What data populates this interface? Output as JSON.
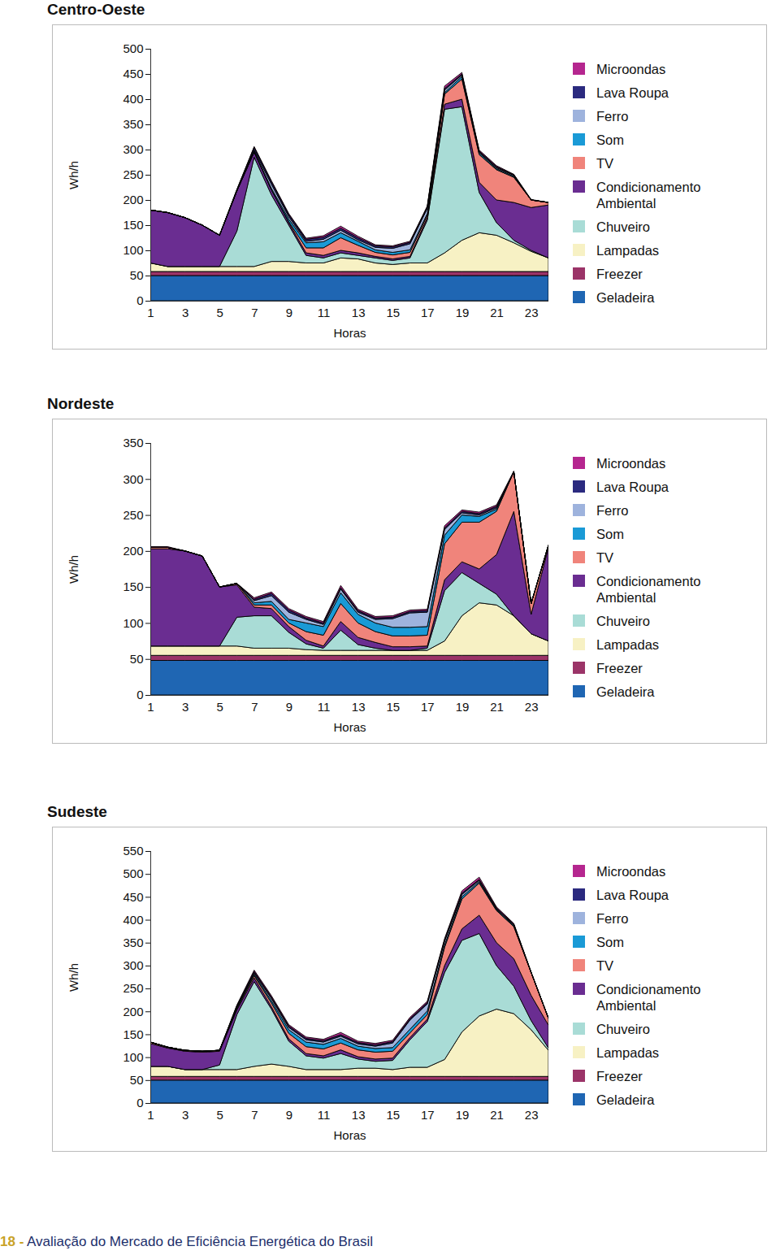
{
  "chart_data": [
    {
      "type": "area",
      "stacked": true,
      "title": "Centro-Oeste",
      "xlabel": "Horas",
      "ylabel": "Wh/h",
      "x": [
        1,
        2,
        3,
        4,
        5,
        6,
        7,
        8,
        9,
        10,
        11,
        12,
        13,
        14,
        15,
        16,
        17,
        18,
        19,
        20,
        21,
        22,
        23,
        24
      ],
      "xlim": [
        1,
        24
      ],
      "xticks": [
        1,
        3,
        5,
        7,
        9,
        11,
        13,
        15,
        17,
        19,
        21,
        23
      ],
      "ylim": [
        0,
        500
      ],
      "yticks": [
        0,
        50,
        100,
        150,
        200,
        250,
        300,
        350,
        400,
        450,
        500
      ],
      "series": [
        {
          "name": "Geladeira",
          "color": "#1f66b3",
          "values": [
            50,
            50,
            50,
            50,
            50,
            50,
            50,
            50,
            50,
            50,
            50,
            50,
            50,
            50,
            50,
            50,
            50,
            50,
            50,
            50,
            50,
            50,
            50,
            50
          ]
        },
        {
          "name": "Freezer",
          "color": "#9b3468",
          "values": [
            8,
            8,
            8,
            8,
            8,
            8,
            8,
            8,
            8,
            8,
            8,
            8,
            8,
            8,
            8,
            8,
            8,
            8,
            8,
            8,
            8,
            8,
            8,
            8
          ]
        },
        {
          "name": "Lampadas",
          "color": "#f7f1c4",
          "values": [
            17,
            10,
            10,
            10,
            10,
            10,
            10,
            20,
            20,
            17,
            17,
            27,
            25,
            17,
            14,
            17,
            17,
            37,
            62,
            77,
            72,
            57,
            40,
            27
          ]
        },
        {
          "name": "Chuveiro",
          "color": "#a9dcd6",
          "values": [
            0,
            0,
            0,
            0,
            0,
            70,
            217,
            132,
            72,
            15,
            10,
            10,
            7,
            10,
            8,
            10,
            85,
            285,
            265,
            80,
            25,
            5,
            2,
            0
          ]
        },
        {
          "name": "Condicionamento Ambiental",
          "color": "#6a2d91",
          "values": [
            105,
            107,
            97,
            82,
            62,
            80,
            10,
            10,
            5,
            5,
            5,
            5,
            5,
            3,
            3,
            3,
            5,
            10,
            15,
            20,
            45,
            75,
            85,
            105
          ]
        },
        {
          "name": "TV",
          "color": "#f0847b",
          "values": [
            0,
            0,
            0,
            0,
            0,
            0,
            0,
            0,
            2,
            10,
            15,
            25,
            15,
            8,
            8,
            8,
            5,
            20,
            40,
            55,
            60,
            50,
            15,
            5
          ]
        },
        {
          "name": "Som",
          "color": "#1a9ad6",
          "values": [
            0,
            0,
            0,
            0,
            0,
            0,
            2,
            3,
            5,
            10,
            12,
            10,
            8,
            5,
            5,
            5,
            3,
            3,
            5,
            3,
            2,
            2,
            0,
            0
          ]
        },
        {
          "name": "Ferro",
          "color": "#9eb3dd",
          "values": [
            0,
            0,
            0,
            0,
            0,
            0,
            2,
            8,
            5,
            3,
            5,
            5,
            3,
            5,
            8,
            12,
            10,
            5,
            3,
            2,
            2,
            2,
            0,
            0
          ]
        },
        {
          "name": "Lava Roupa",
          "color": "#2b2a7f",
          "values": [
            0,
            0,
            0,
            0,
            0,
            2,
            5,
            5,
            4,
            4,
            4,
            4,
            4,
            3,
            3,
            3,
            3,
            3,
            2,
            2,
            2,
            1,
            0,
            0
          ]
        },
        {
          "name": "Microondas",
          "color": "#b5268f",
          "values": [
            0,
            0,
            0,
            0,
            0,
            1,
            2,
            2,
            2,
            2,
            3,
            4,
            3,
            2,
            2,
            2,
            2,
            5,
            3,
            2,
            2,
            1,
            1,
            0
          ]
        }
      ]
    },
    {
      "type": "area",
      "stacked": true,
      "title": "Nordeste",
      "xlabel": "Horas",
      "ylabel": "Wh/h",
      "x": [
        1,
        2,
        3,
        4,
        5,
        6,
        7,
        8,
        9,
        10,
        11,
        12,
        13,
        14,
        15,
        16,
        17,
        18,
        19,
        20,
        21,
        22,
        23,
        24
      ],
      "xlim": [
        1,
        24
      ],
      "xticks": [
        1,
        3,
        5,
        7,
        9,
        11,
        13,
        15,
        17,
        19,
        21,
        23
      ],
      "ylim": [
        0,
        350
      ],
      "yticks": [
        0,
        50,
        100,
        150,
        200,
        250,
        300,
        350
      ],
      "series": [
        {
          "name": "Geladeira",
          "color": "#1f66b3",
          "values": [
            48,
            48,
            48,
            48,
            48,
            48,
            48,
            48,
            48,
            48,
            48,
            48,
            48,
            48,
            48,
            48,
            48,
            48,
            48,
            48,
            48,
            48,
            48,
            48
          ]
        },
        {
          "name": "Freezer",
          "color": "#9b3468",
          "values": [
            7,
            7,
            7,
            7,
            7,
            7,
            7,
            7,
            7,
            7,
            7,
            7,
            7,
            7,
            7,
            7,
            7,
            7,
            7,
            7,
            7,
            7,
            7,
            7
          ]
        },
        {
          "name": "Lampadas",
          "color": "#f7f1c4",
          "values": [
            13,
            13,
            13,
            13,
            13,
            13,
            10,
            10,
            10,
            8,
            7,
            7,
            7,
            7,
            7,
            7,
            7,
            20,
            55,
            73,
            70,
            55,
            30,
            20
          ]
        },
        {
          "name": "Chuveiro",
          "color": "#a9dcd6",
          "values": [
            0,
            0,
            0,
            0,
            0,
            40,
            45,
            45,
            22,
            8,
            3,
            28,
            8,
            3,
            0,
            0,
            3,
            70,
            60,
            27,
            15,
            0,
            0,
            0
          ]
        },
        {
          "name": "Condicionamento Ambiental",
          "color": "#6a2d91",
          "values": [
            135,
            135,
            132,
            125,
            82,
            45,
            12,
            10,
            8,
            5,
            3,
            12,
            10,
            8,
            5,
            5,
            3,
            15,
            15,
            20,
            55,
            145,
            27,
            130
          ]
        },
        {
          "name": "TV",
          "color": "#f0847b",
          "values": [
            2,
            2,
            0,
            0,
            0,
            2,
            3,
            5,
            5,
            12,
            15,
            25,
            20,
            15,
            15,
            15,
            15,
            50,
            55,
            65,
            60,
            55,
            15,
            3
          ]
        },
        {
          "name": "Som",
          "color": "#1a9ad6",
          "values": [
            0,
            0,
            0,
            0,
            0,
            0,
            3,
            5,
            5,
            12,
            12,
            15,
            12,
            12,
            12,
            12,
            12,
            12,
            10,
            8,
            3,
            0,
            0,
            0
          ]
        },
        {
          "name": "Ferro",
          "color": "#9eb3dd",
          "values": [
            0,
            0,
            0,
            0,
            0,
            0,
            3,
            8,
            10,
            5,
            3,
            5,
            3,
            5,
            12,
            20,
            20,
            8,
            3,
            2,
            2,
            0,
            0,
            0
          ]
        },
        {
          "name": "Lava Roupa",
          "color": "#2b2a7f",
          "values": [
            0,
            0,
            0,
            0,
            0,
            0,
            2,
            3,
            3,
            2,
            2,
            2,
            2,
            2,
            2,
            2,
            2,
            2,
            2,
            2,
            2,
            0,
            0,
            0
          ]
        },
        {
          "name": "Microondas",
          "color": "#b5268f",
          "values": [
            1,
            1,
            0,
            0,
            0,
            0,
            2,
            2,
            2,
            2,
            2,
            3,
            2,
            2,
            2,
            2,
            2,
            3,
            2,
            2,
            2,
            1,
            0,
            0
          ]
        }
      ]
    },
    {
      "type": "area",
      "stacked": true,
      "title": "Sudeste",
      "xlabel": "Horas",
      "ylabel": "Wh/h",
      "x": [
        1,
        2,
        3,
        4,
        5,
        6,
        7,
        8,
        9,
        10,
        11,
        12,
        13,
        14,
        15,
        16,
        17,
        18,
        19,
        20,
        21,
        22,
        23,
        24
      ],
      "xlim": [
        1,
        24
      ],
      "xticks": [
        1,
        3,
        5,
        7,
        9,
        11,
        13,
        15,
        17,
        19,
        21,
        23
      ],
      "ylim": [
        0,
        550
      ],
      "yticks": [
        0,
        50,
        100,
        150,
        200,
        250,
        300,
        350,
        400,
        450,
        500,
        550
      ],
      "series": [
        {
          "name": "Geladeira",
          "color": "#1f66b3",
          "values": [
            50,
            50,
            50,
            50,
            50,
            50,
            50,
            50,
            50,
            50,
            50,
            50,
            50,
            50,
            50,
            50,
            50,
            50,
            50,
            50,
            50,
            50,
            50,
            50
          ]
        },
        {
          "name": "Freezer",
          "color": "#9b3468",
          "values": [
            8,
            8,
            8,
            8,
            8,
            8,
            8,
            8,
            8,
            8,
            8,
            8,
            8,
            8,
            8,
            8,
            8,
            8,
            8,
            8,
            8,
            8,
            8,
            8
          ]
        },
        {
          "name": "Lampadas",
          "color": "#f7f1c4",
          "values": [
            22,
            22,
            15,
            15,
            15,
            15,
            22,
            27,
            22,
            15,
            15,
            15,
            18,
            18,
            15,
            20,
            20,
            37,
            97,
            132,
            147,
            137,
            102,
            57
          ]
        },
        {
          "name": "Chuveiro",
          "color": "#a9dcd6",
          "values": [
            0,
            0,
            0,
            0,
            10,
            120,
            185,
            120,
            55,
            30,
            25,
            35,
            20,
            15,
            20,
            60,
            100,
            190,
            200,
            180,
            95,
            60,
            20,
            5
          ]
        },
        {
          "name": "Condicionamento Ambiental",
          "color": "#6a2d91",
          "values": [
            50,
            40,
            40,
            38,
            30,
            10,
            8,
            5,
            5,
            5,
            5,
            8,
            5,
            5,
            5,
            5,
            5,
            15,
            25,
            40,
            50,
            60,
            55,
            50
          ]
        },
        {
          "name": "TV",
          "color": "#f0847b",
          "values": [
            3,
            2,
            2,
            2,
            2,
            3,
            5,
            8,
            12,
            15,
            15,
            15,
            15,
            15,
            15,
            10,
            10,
            40,
            65,
            70,
            70,
            70,
            50,
            15
          ]
        },
        {
          "name": "Som",
          "color": "#1a9ad6",
          "values": [
            0,
            0,
            0,
            0,
            0,
            2,
            3,
            5,
            8,
            10,
            10,
            10,
            8,
            8,
            8,
            8,
            8,
            5,
            5,
            3,
            2,
            2,
            0,
            0
          ]
        },
        {
          "name": "Ferro",
          "color": "#9eb3dd",
          "values": [
            0,
            0,
            0,
            0,
            0,
            2,
            3,
            5,
            5,
            5,
            5,
            5,
            5,
            5,
            10,
            20,
            15,
            8,
            5,
            3,
            2,
            2,
            0,
            0
          ]
        },
        {
          "name": "Lava Roupa",
          "color": "#2b2a7f",
          "values": [
            0,
            0,
            0,
            0,
            0,
            2,
            3,
            3,
            3,
            3,
            3,
            3,
            3,
            3,
            3,
            3,
            3,
            3,
            3,
            2,
            2,
            1,
            0,
            0
          ]
        },
        {
          "name": "Microondas",
          "color": "#b5268f",
          "values": [
            0,
            0,
            0,
            0,
            0,
            2,
            3,
            3,
            3,
            3,
            3,
            5,
            3,
            3,
            3,
            3,
            3,
            3,
            5,
            5,
            2,
            2,
            1,
            0
          ]
        }
      ]
    }
  ],
  "footer_page": "18 -",
  "footer_text": "Avaliação do Mercado de Eficiência Energética do Brasil"
}
